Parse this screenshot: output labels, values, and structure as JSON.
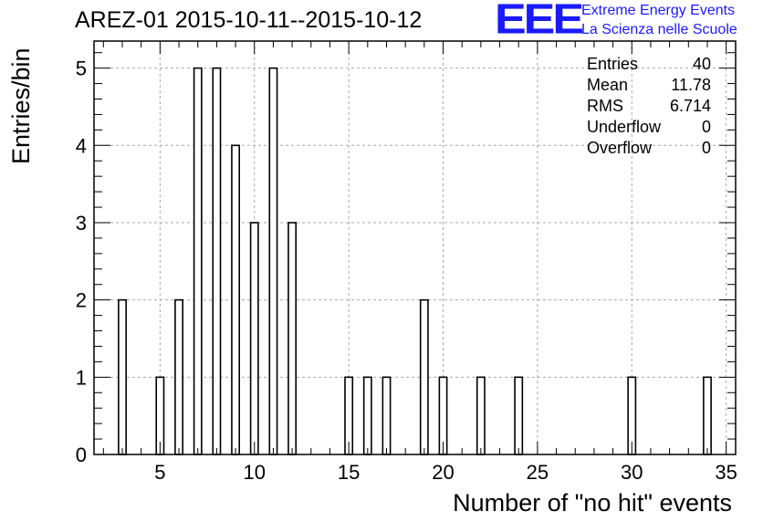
{
  "chart_data": {
    "type": "bar",
    "title": "AREZ-01 2015-10-11--2015-10-12",
    "xlabel": "Number of \"no hit\" events",
    "ylabel": "Entries/bin",
    "xlim": [
      1.5,
      35.5
    ],
    "ylim": [
      0,
      5.35
    ],
    "grid": true,
    "bin_width": 0.4,
    "x_ticks": [
      5,
      10,
      15,
      20,
      25,
      30,
      35
    ],
    "y_ticks": [
      0,
      1,
      2,
      3,
      4,
      5
    ],
    "bins": [
      {
        "x": 3,
        "value": 2
      },
      {
        "x": 5,
        "value": 1
      },
      {
        "x": 6,
        "value": 2
      },
      {
        "x": 7,
        "value": 5
      },
      {
        "x": 8,
        "value": 5
      },
      {
        "x": 9,
        "value": 4
      },
      {
        "x": 10,
        "value": 3
      },
      {
        "x": 11,
        "value": 5
      },
      {
        "x": 12,
        "value": 3
      },
      {
        "x": 15,
        "value": 1
      },
      {
        "x": 16,
        "value": 1
      },
      {
        "x": 17,
        "value": 1
      },
      {
        "x": 19,
        "value": 2
      },
      {
        "x": 20,
        "value": 1
      },
      {
        "x": 22,
        "value": 1
      },
      {
        "x": 24,
        "value": 1
      },
      {
        "x": 30,
        "value": 1
      },
      {
        "x": 34,
        "value": 1
      }
    ]
  },
  "stats": [
    {
      "label": "Entries",
      "value": "40"
    },
    {
      "label": "Mean",
      "value": "11.78"
    },
    {
      "label": "RMS",
      "value": "6.714"
    },
    {
      "label": "Underflow",
      "value": "0"
    },
    {
      "label": "Overflow",
      "value": "0"
    }
  ],
  "logo": {
    "mark": "EEE",
    "line1": "Extreme Energy Events",
    "line2": "La Scienza nelle Scuole"
  }
}
